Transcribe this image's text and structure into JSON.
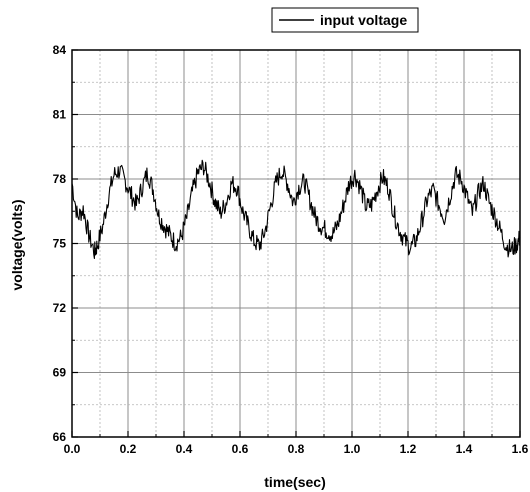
{
  "chart_data": {
    "type": "line",
    "title": "",
    "xlabel": "time(sec)",
    "ylabel": "voltage(volts)",
    "xlim": [
      0.0,
      1.6
    ],
    "ylim": [
      66,
      84
    ],
    "x_ticks": [
      "0.0",
      "0.2",
      "0.4",
      "0.6",
      "0.8",
      "1.0",
      "1.2",
      "1.4",
      "1.6"
    ],
    "y_ticks": [
      "66",
      "69",
      "72",
      "75",
      "78",
      "81",
      "84"
    ],
    "grid": true,
    "legend_position": "top-right",
    "series": [
      {
        "name": "input voltage",
        "color": "#000000",
        "x": [
          0.0,
          0.02,
          0.04,
          0.06,
          0.08,
          0.09,
          0.11,
          0.13,
          0.15,
          0.17,
          0.19,
          0.21,
          0.23,
          0.25,
          0.27,
          0.29,
          0.31,
          0.33,
          0.35,
          0.37,
          0.39,
          0.41,
          0.43,
          0.45,
          0.47,
          0.49,
          0.51,
          0.53,
          0.55,
          0.57,
          0.59,
          0.61,
          0.63,
          0.65,
          0.67,
          0.69,
          0.71,
          0.73,
          0.75,
          0.77,
          0.79,
          0.81,
          0.83,
          0.85,
          0.87,
          0.89,
          0.91,
          0.93,
          0.95,
          0.97,
          0.99,
          1.01,
          1.03,
          1.05,
          1.07,
          1.09,
          1.11,
          1.13,
          1.15,
          1.17,
          1.19,
          1.21,
          1.23,
          1.25,
          1.27,
          1.29,
          1.31,
          1.33,
          1.35,
          1.37,
          1.39,
          1.41,
          1.43,
          1.45,
          1.47,
          1.49,
          1.51,
          1.53,
          1.55,
          1.57,
          1.59,
          1.6
        ],
        "values": [
          77.8,
          76.2,
          76.6,
          75.4,
          74.6,
          74.9,
          75.8,
          77.2,
          78.2,
          78.4,
          77.9,
          77.3,
          76.8,
          77.6,
          78.3,
          77.5,
          76.3,
          75.8,
          75.4,
          75.0,
          75.3,
          76.2,
          77.4,
          78.3,
          78.6,
          77.9,
          77.0,
          76.4,
          76.9,
          77.8,
          77.6,
          76.5,
          75.8,
          75.1,
          74.9,
          75.6,
          76.8,
          77.9,
          78.4,
          77.8,
          76.9,
          77.6,
          77.9,
          77.0,
          76.2,
          75.8,
          75.6,
          75.4,
          75.9,
          76.8,
          77.8,
          78.2,
          77.6,
          76.7,
          76.8,
          77.5,
          78.1,
          77.6,
          76.4,
          75.6,
          75.1,
          74.8,
          75.2,
          76.1,
          77.1,
          77.5,
          76.8,
          76.2,
          77.2,
          78.2,
          78.0,
          77.2,
          76.4,
          77.3,
          77.8,
          76.9,
          76.3,
          75.6,
          74.9,
          74.7,
          75.0,
          75.3
        ]
      }
    ]
  }
}
